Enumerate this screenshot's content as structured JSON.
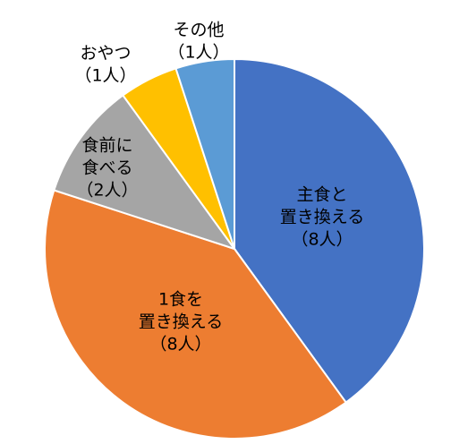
{
  "chart_data": {
    "type": "pie",
    "categories": [
      [
        "主食と",
        "置き換える"
      ],
      [
        "1食を",
        "置き換える"
      ],
      [
        "食前に",
        "食べる"
      ],
      [
        "おやつ"
      ],
      [
        "その他"
      ]
    ],
    "values": [
      8,
      8,
      2,
      1,
      1
    ],
    "value_labels": [
      "（8人）",
      "（8人）",
      "（2人）",
      "（1人）",
      "（1人）"
    ],
    "colors": [
      "#4472c4",
      "#ed7d31",
      "#a5a5a5",
      "#ffc000",
      "#5b9bd5"
    ]
  }
}
